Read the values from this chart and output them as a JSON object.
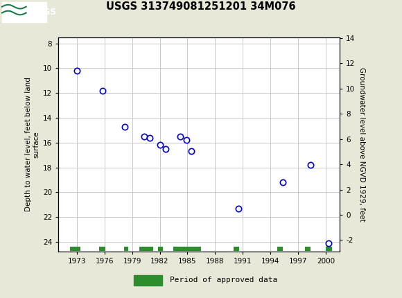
{
  "title": "USGS 313749081251201 34M076",
  "ylabel_left": "Depth to water level, feet below land\nsurface",
  "ylabel_right": "Groundwater level above NGVD 1929, feet",
  "xlim": [
    1971,
    2001.5
  ],
  "ylim_left": [
    24.8,
    7.5
  ],
  "ylim_right": [
    -2.93,
    14.07
  ],
  "xticks": [
    1973,
    1976,
    1979,
    1982,
    1985,
    1988,
    1991,
    1994,
    1997,
    2000
  ],
  "yticks_left": [
    8,
    10,
    12,
    14,
    16,
    18,
    20,
    22,
    24
  ],
  "yticks_right": [
    14,
    12,
    10,
    8,
    6,
    4,
    2,
    0,
    -2
  ],
  "data_points": [
    {
      "year": 1973.0,
      "depth": 10.2
    },
    {
      "year": 1975.8,
      "depth": 11.8
    },
    {
      "year": 1978.2,
      "depth": 14.7
    },
    {
      "year": 1980.3,
      "depth": 15.5
    },
    {
      "year": 1980.9,
      "depth": 15.6
    },
    {
      "year": 1982.0,
      "depth": 16.2
    },
    {
      "year": 1982.6,
      "depth": 16.5
    },
    {
      "year": 1984.2,
      "depth": 15.5
    },
    {
      "year": 1984.9,
      "depth": 15.8
    },
    {
      "year": 1985.4,
      "depth": 16.7
    },
    {
      "year": 1990.5,
      "depth": 21.3
    },
    {
      "year": 1995.3,
      "depth": 19.2
    },
    {
      "year": 1998.3,
      "depth": 17.8
    },
    {
      "year": 2000.3,
      "depth": 24.1
    }
  ],
  "period_of_approved_data": [
    [
      1972.3,
      1973.4
    ],
    [
      1975.4,
      1976.1
    ],
    [
      1978.1,
      1978.6
    ],
    [
      1979.8,
      1981.3
    ],
    [
      1981.8,
      1982.3
    ],
    [
      1983.5,
      1986.5
    ],
    [
      1990.0,
      1990.6
    ],
    [
      1994.7,
      1995.3
    ],
    [
      1997.7,
      1998.3
    ],
    [
      2000.0,
      2000.7
    ]
  ],
  "header_color": "#1a7a4a",
  "dot_color": "#0000cc",
  "approved_color": "#2d8c2d",
  "background_color": "#e8e8d8",
  "plot_bg_color": "#ffffff",
  "grid_color": "#c8c8c8",
  "bottom_y": 24.55
}
